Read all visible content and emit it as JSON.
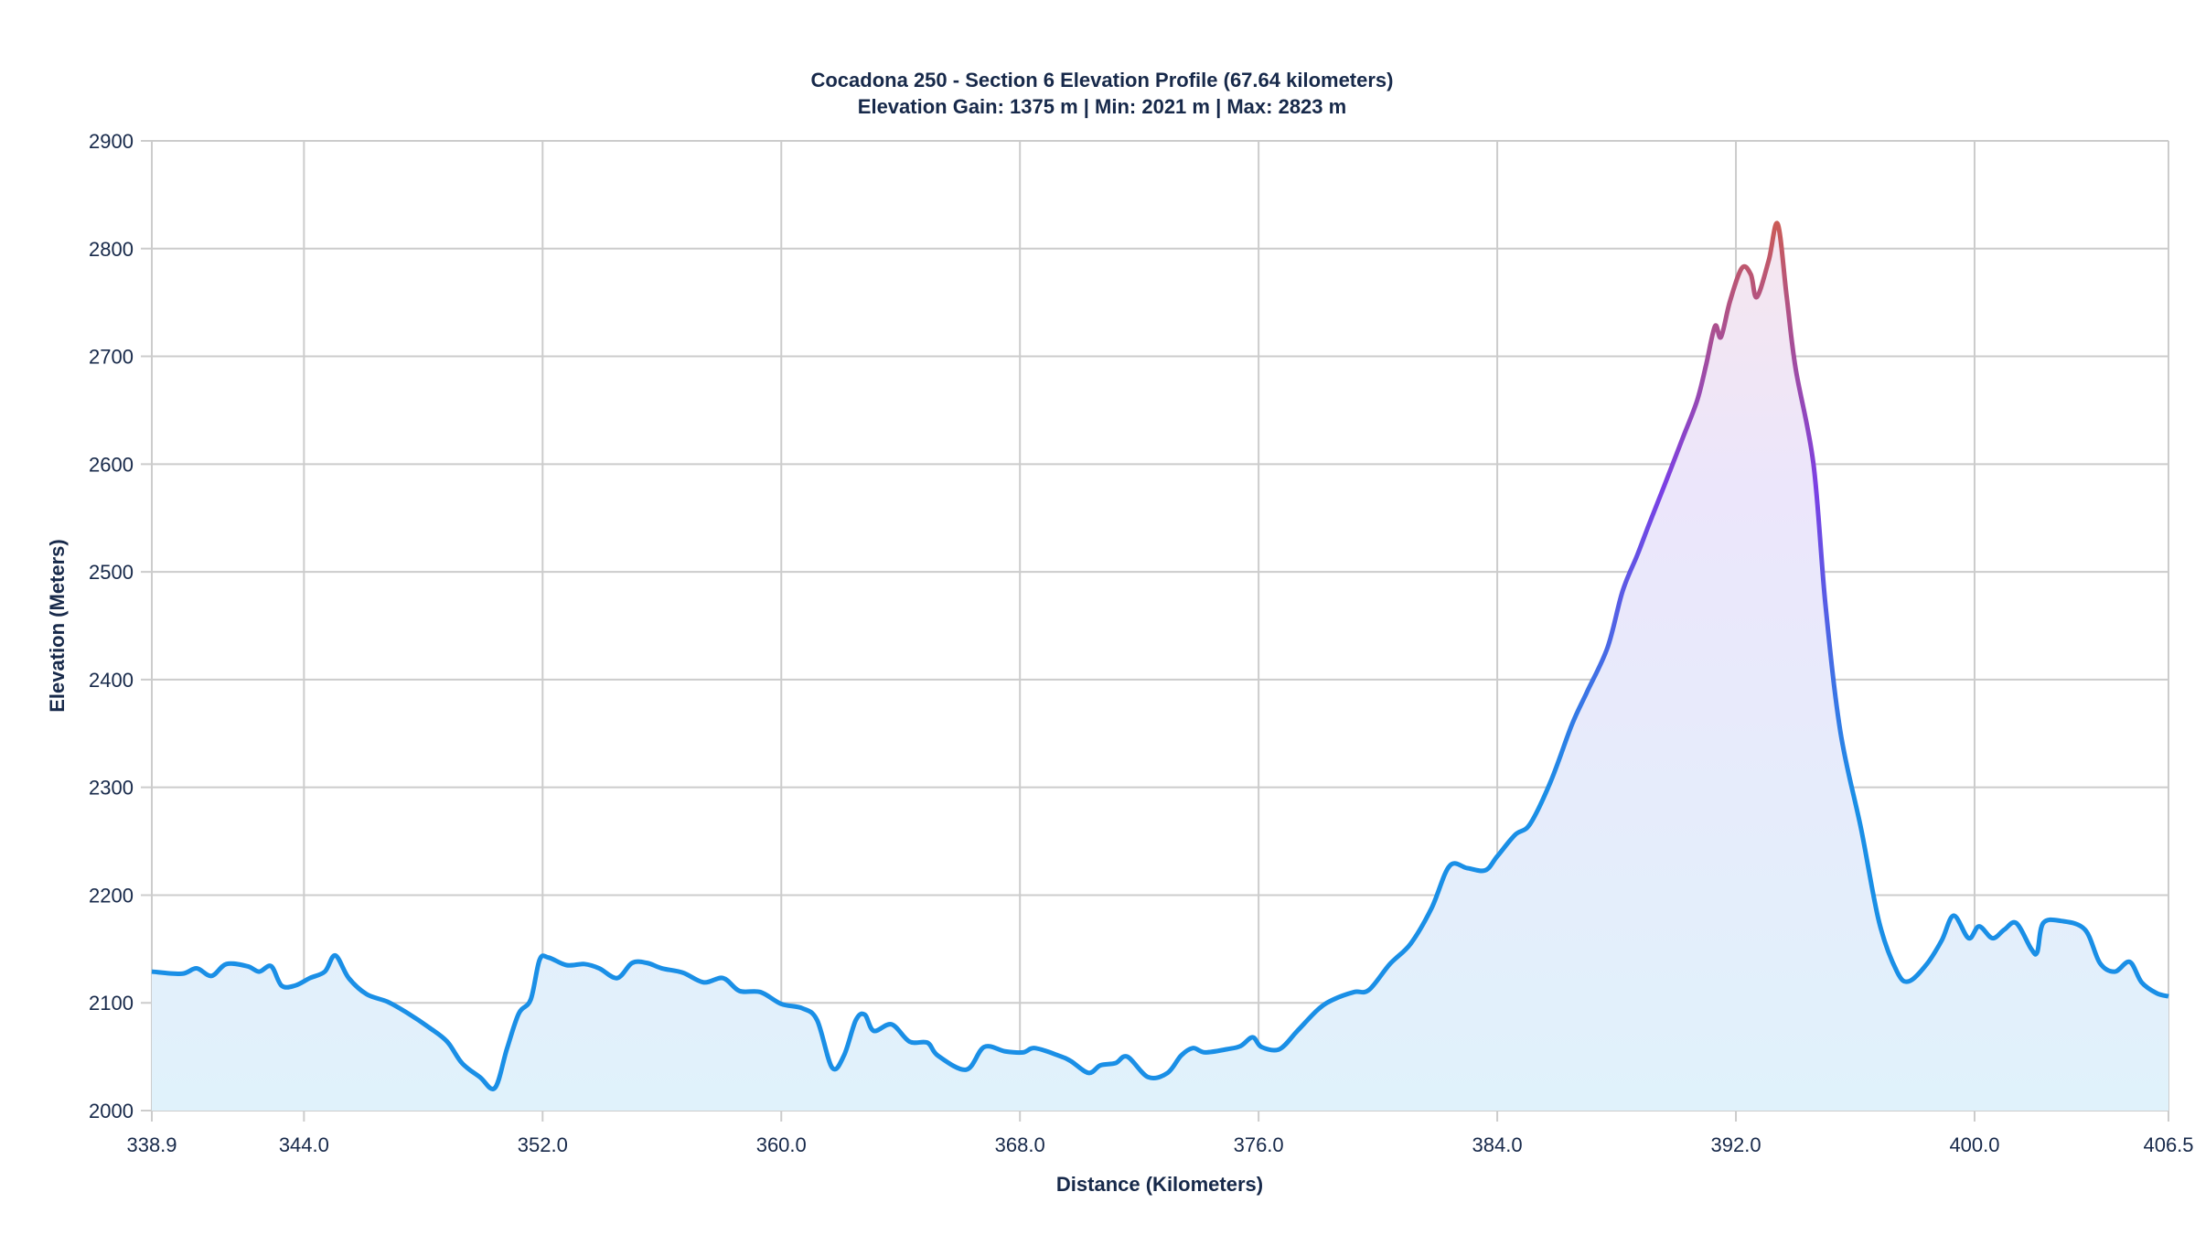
{
  "chart_data": {
    "type": "area",
    "title": "Cocadona 250 - Section 6 Elevation Profile (67.64 kilometers)",
    "subtitle": "Elevation Gain: 1375 m | Min: 2021 m | Max: 2823 m",
    "xlabel": "Distance (Kilometers)",
    "ylabel": "Elevation (Meters)",
    "xlim": [
      338.9,
      406.5
    ],
    "ylim": [
      2000,
      2900
    ],
    "x_ticks": [
      "338.9",
      "344.0",
      "352.0",
      "360.0",
      "368.0",
      "376.0",
      "384.0",
      "392.0",
      "400.0",
      "406.5"
    ],
    "y_ticks": [
      "2000",
      "2100",
      "2200",
      "2300",
      "2400",
      "2500",
      "2600",
      "2700",
      "2800",
      "2900"
    ],
    "grid": true,
    "legend": "none",
    "colors": {
      "low": "#1a8fe6",
      "mid": "#7b3fe4",
      "high": "#cc5c55",
      "fill_low": "#e0f2fb",
      "fill_high": "#f6e6ee"
    },
    "series": [
      {
        "x": [
          338.9,
          339.9,
          340.4,
          340.9,
          341.4,
          342.1,
          342.5,
          342.9,
          343.25,
          343.7,
          344.2,
          344.7,
          345.05,
          345.5,
          346.1,
          346.8,
          347.5,
          348.2,
          348.8,
          349.3,
          349.9,
          350.4,
          350.8,
          351.2,
          351.6,
          351.9,
          352.2,
          352.8,
          353.4,
          353.9,
          354.5,
          355.0,
          355.5,
          356.0,
          356.7,
          357.4,
          358.05,
          358.6,
          359.3,
          360.0,
          360.7,
          361.2,
          361.7,
          362.1,
          362.5,
          362.8,
          363.1,
          363.7,
          364.3,
          364.9,
          365.25,
          366.2,
          366.8,
          367.5,
          368.1,
          368.5,
          369.3,
          369.7,
          370.3,
          370.7,
          371.2,
          371.6,
          372.3,
          372.95,
          373.4,
          373.8,
          374.2,
          374.95,
          375.4,
          375.8,
          376.1,
          376.7,
          377.3,
          378.0,
          378.5,
          379.2,
          379.7,
          380.4,
          381.1,
          381.8,
          382.4,
          383.0,
          383.6,
          384.0,
          384.6,
          385.1,
          385.8,
          386.5,
          387.0,
          387.7,
          388.2,
          388.7,
          389.1,
          389.6,
          390.2,
          390.7,
          391.0,
          391.3,
          391.5,
          391.8,
          392.2,
          392.5,
          392.7,
          393.1,
          393.4,
          393.7,
          394.0,
          394.6,
          395.0,
          395.5,
          396.2,
          396.8,
          397.4,
          397.8,
          398.4,
          398.9,
          399.3,
          399.8,
          400.15,
          400.6,
          401.0,
          401.4,
          401.9,
          402.1,
          402.3,
          402.9,
          403.7,
          404.2,
          404.7,
          405.2,
          405.6,
          406.1,
          406.5
        ],
        "y": [
          2129,
          2127,
          2132,
          2125,
          2136,
          2134,
          2129,
          2134,
          2116,
          2116,
          2123,
          2129,
          2144,
          2123,
          2108,
          2101,
          2090,
          2077,
          2064,
          2044,
          2031,
          2021,
          2057,
          2090,
          2103,
          2140,
          2142,
          2135,
          2136,
          2132,
          2123,
          2137,
          2137,
          2132,
          2128,
          2119,
          2123,
          2111,
          2110,
          2099,
          2095,
          2084,
          2040,
          2051,
          2084,
          2089,
          2074,
          2080,
          2064,
          2063,
          2051,
          2038,
          2059,
          2055,
          2054,
          2058,
          2051,
          2046,
          2035,
          2042,
          2044,
          2050,
          2031,
          2035,
          2051,
          2058,
          2054,
          2057,
          2060,
          2068,
          2059,
          2057,
          2074,
          2094,
          2103,
          2110,
          2112,
          2136,
          2155,
          2188,
          2227,
          2225,
          2223,
          2236,
          2256,
          2266,
          2306,
          2358,
          2388,
          2430,
          2482,
          2516,
          2545,
          2580,
          2623,
          2659,
          2692,
          2728,
          2718,
          2751,
          2782,
          2776,
          2755,
          2789,
          2823,
          2756,
          2689,
          2600,
          2470,
          2352,
          2261,
          2175,
          2129,
          2120,
          2136,
          2158,
          2181,
          2160,
          2171,
          2160,
          2168,
          2174,
          2150,
          2147,
          2174,
          2176,
          2168,
          2137,
          2129,
          2138,
          2119,
          2109,
          2106
        ]
      }
    ]
  }
}
